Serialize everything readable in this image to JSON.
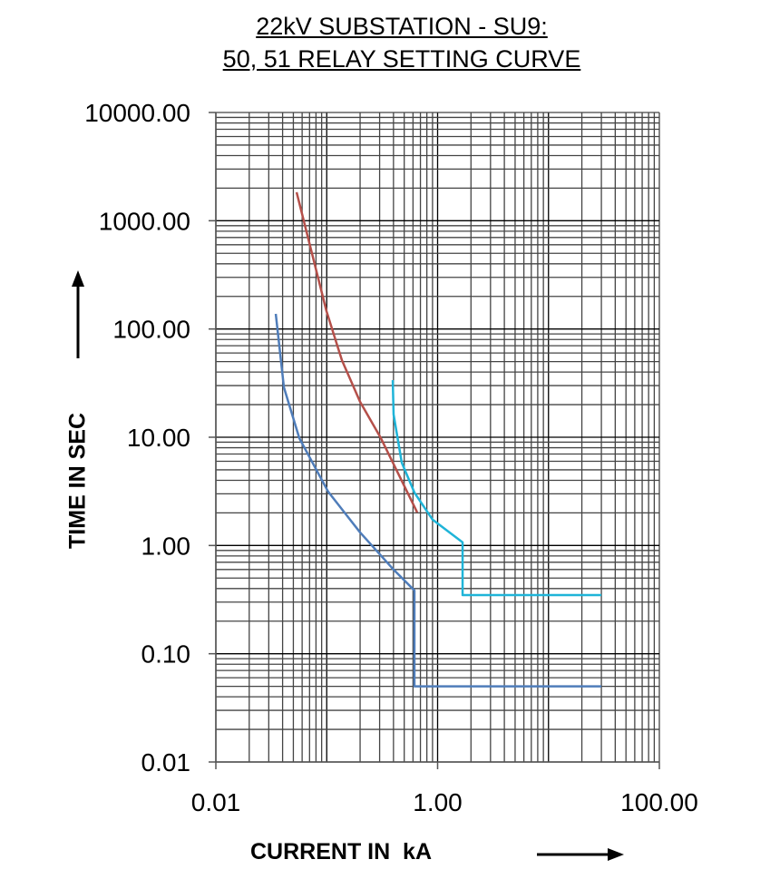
{
  "chart_data": {
    "type": "line",
    "title": [
      "22kV SUBSTATION - SU9:",
      "50, 51 RELAY SETTING CURVE"
    ],
    "xlabel": "CURRENT IN  kA",
    "ylabel": "TIME IN SEC",
    "xscale": "log",
    "yscale": "log",
    "xlim": [
      0.01,
      100
    ],
    "ylim": [
      0.01,
      10000
    ],
    "xticks": [
      "0.01",
      "1.00",
      "100.00"
    ],
    "xtick_values": [
      0.01,
      1,
      100
    ],
    "yticks": [
      "0.01",
      "0.10",
      "1.00",
      "10.00",
      "100.00",
      "1000.00",
      "10000.00"
    ],
    "ytick_values": [
      0.01,
      0.1,
      1,
      10,
      100,
      1000,
      10000
    ],
    "grid": true,
    "series": [
      {
        "name": "curve-red",
        "color": "#b5504a",
        "x": [
          0.0535,
          0.0995,
          0.137,
          0.2,
          0.308,
          0.655
        ],
        "y": [
          1832,
          146,
          51.5,
          21.2,
          9.8,
          2.02
        ]
      },
      {
        "name": "curve-blue",
        "color": "#4f7dba",
        "x": [
          0.0347,
          0.0411,
          0.0566,
          0.103,
          0.2,
          0.394,
          0.618,
          0.618,
          30
        ],
        "y": [
          138,
          28.9,
          9.8,
          3.14,
          1.32,
          0.61,
          0.384,
          0.05,
          0.05
        ]
      },
      {
        "name": "curve-cyan",
        "color": "#1fb4d8",
        "x": [
          0.394,
          0.401,
          0.475,
          0.618,
          0.902,
          1.68,
          1.68,
          30
        ],
        "y": [
          33.7,
          16.2,
          5.83,
          3.08,
          1.73,
          1.07,
          0.348,
          0.348
        ]
      }
    ]
  }
}
